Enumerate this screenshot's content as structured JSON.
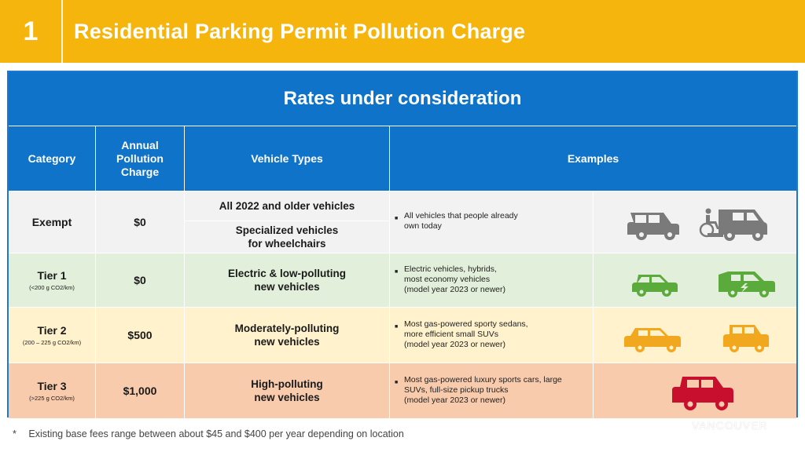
{
  "header": {
    "number": "1",
    "title": "Residential Parking Permit Pollution Charge"
  },
  "table": {
    "banner": "Rates under consideration",
    "headers": {
      "category": "Category",
      "charge": "Annual\nPollution\nCharge",
      "vehicle_types": "Vehicle Types",
      "examples": "Examples"
    },
    "rows": [
      {
        "category": "Exempt",
        "sub": "",
        "charge": "$0",
        "vehicle_types": [
          "All 2022 and older vehicles",
          "Specialized vehicles\nfor wheelchairs"
        ],
        "examples": "All vehicles that people already\nown today",
        "icons": [
          "suv-icon",
          "wheelchair-van-icon"
        ],
        "color": "#7a7a7a"
      },
      {
        "category": "Tier 1",
        "sub": "(<200 g CO2/km)",
        "charge": "$0",
        "vehicle_types": [
          "Electric & low-polluting\nnew vehicles"
        ],
        "examples": "Electric vehicles, hybrids,\nmost economy vehicles\n(model year 2023 or newer)",
        "icons": [
          "car-icon",
          "electric-car-icon"
        ],
        "color": "#5aaa3c"
      },
      {
        "category": "Tier 2",
        "sub": "(200 – 225 g CO2/km)",
        "charge": "$500",
        "vehicle_types": [
          "Moderately-polluting\nnew vehicles"
        ],
        "examples": "Most gas-powered sporty sedans,\nmore efficient small SUVs\n(model year 2023 or newer)",
        "icons": [
          "sedan-icon",
          "small-suv-icon"
        ],
        "color": "#f2a81e"
      },
      {
        "category": "Tier 3",
        "sub": "(>225 g CO2/km)",
        "charge": "$1,000",
        "vehicle_types": [
          "High-polluting\nnew vehicles"
        ],
        "examples": "Most gas-powered luxury sports cars, large\nSUVs, full-size pickup trucks\n(model year 2023 or newer)",
        "icons": [
          "large-suv-icon"
        ],
        "color": "#c8102e"
      }
    ]
  },
  "footnote": {
    "star": "*",
    "text": "Existing base fees range between about $45 and $400 per year depending on location"
  },
  "watermark": "VANCOUVER",
  "colors": {
    "header": "#f5b50c",
    "blue": "#0f73c9"
  }
}
